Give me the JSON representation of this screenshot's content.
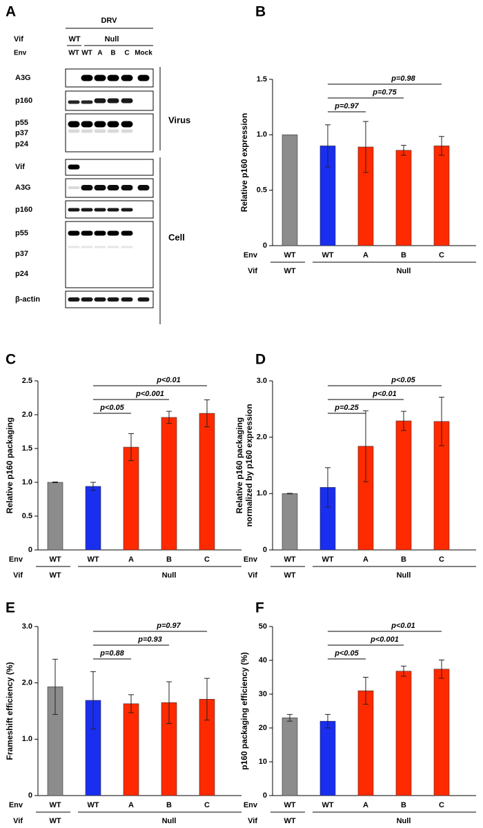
{
  "blot": {
    "panel": "A",
    "title": "DRV",
    "vif_label": "Vif",
    "vif_groups": [
      "WT",
      "Null"
    ],
    "env_label": "Env",
    "lanes": [
      "WT",
      "WT",
      "A",
      "B",
      "C",
      "Mock"
    ],
    "virus_label": "Virus",
    "cell_label": "Cell",
    "virus_blots": [
      [
        "A3G"
      ],
      [
        "p160"
      ],
      [
        "p55",
        "p37",
        "p24"
      ]
    ],
    "cell_blots": [
      [
        "Vif"
      ],
      [
        "A3G"
      ],
      [
        "p160"
      ],
      [
        "p55",
        "p37",
        "p24"
      ],
      [
        "β-actin"
      ]
    ]
  },
  "chart_data": [
    {
      "type": "bar",
      "panel": "B",
      "ylabel": "Relative p160 expression",
      "categories": [
        "WT",
        "WT",
        "A",
        "B",
        "C"
      ],
      "values": [
        1.0,
        0.9,
        0.89,
        0.86,
        0.9
      ],
      "errors": [
        0,
        0.19,
        0.23,
        0.045,
        0.085
      ],
      "colors": [
        "#8c8c8c",
        "#1a2ef0",
        "#ff2a00",
        "#ff2a00",
        "#ff2a00"
      ],
      "ylim": [
        0,
        1.5
      ],
      "yticks": [
        0,
        0.5,
        {
          "value": 1,
          "label": "1.0"
        },
        1.5
      ],
      "comparisons": [
        "p=0.97",
        "p=0.75",
        "p=0.98"
      ],
      "row_labels": [
        "Env",
        "Vif"
      ],
      "groups": [
        "WT",
        "Null"
      ]
    },
    {
      "type": "bar",
      "panel": "C",
      "ylabel": "Relative p160 packaging",
      "categories": [
        "WT",
        "WT",
        "A",
        "B",
        "C"
      ],
      "values": [
        1.0,
        0.94,
        1.52,
        1.96,
        2.02
      ],
      "errors": [
        0.005,
        0.06,
        0.2,
        0.09,
        0.2
      ],
      "colors": [
        "#8c8c8c",
        "#1a2ef0",
        "#ff2a00",
        "#ff2a00",
        "#ff2a00"
      ],
      "ylim": [
        0,
        2.5
      ],
      "yticks": [
        0,
        0.5,
        {
          "value": 1,
          "label": "1.0"
        },
        1.5,
        {
          "value": 2,
          "label": "2.0"
        },
        2.5
      ],
      "comparisons": [
        "p<0.05",
        "p<0.001",
        "p<0.01"
      ],
      "row_labels": [
        "Env",
        "Vif"
      ],
      "groups": [
        "WT",
        "Null"
      ]
    },
    {
      "type": "bar",
      "panel": "D",
      "ylabel": [
        "Relative p160 packaging",
        "normalized by p160 expression"
      ],
      "categories": [
        "WT",
        "WT",
        "A",
        "B",
        "C"
      ],
      "values": [
        1.0,
        1.11,
        1.84,
        2.29,
        2.28
      ],
      "errors": [
        0.005,
        0.35,
        0.63,
        0.17,
        0.43
      ],
      "colors": [
        "#8c8c8c",
        "#1a2ef0",
        "#ff2a00",
        "#ff2a00",
        "#ff2a00"
      ],
      "ylim": [
        0,
        3
      ],
      "yticks": [
        0,
        {
          "value": 1,
          "label": "1.0"
        },
        {
          "value": 2,
          "label": "2.0"
        },
        {
          "value": 3,
          "label": "3.0"
        }
      ],
      "comparisons": [
        "p=0.25",
        "p<0.01",
        "p<0.05"
      ],
      "row_labels": [
        "Env",
        "Vif"
      ],
      "groups": [
        "WT",
        "Null"
      ]
    },
    {
      "type": "bar",
      "panel": "E",
      "ylabel": "Frameshift efficiency (%)",
      "categories": [
        "WT",
        "WT",
        "A",
        "B",
        "C"
      ],
      "values": [
        1.93,
        1.69,
        1.63,
        1.65,
        1.71
      ],
      "errors": [
        0.49,
        0.51,
        0.16,
        0.37,
        0.37
      ],
      "colors": [
        "#8c8c8c",
        "#1a2ef0",
        "#ff2a00",
        "#ff2a00",
        "#ff2a00"
      ],
      "ylim": [
        0,
        3
      ],
      "yticks": [
        0,
        {
          "value": 1,
          "label": "1.0"
        },
        {
          "value": 2,
          "label": "2.0"
        },
        {
          "value": 3,
          "label": "3.0"
        }
      ],
      "comparisons": [
        "p=0.88",
        "p=0.93",
        "p=0.97"
      ],
      "row_labels": [
        "Env",
        "Vif"
      ],
      "groups": [
        "WT",
        "Null"
      ]
    },
    {
      "type": "bar",
      "panel": "F",
      "ylabel": "p160 packaging efficiency (%)",
      "categories": [
        "WT",
        "WT",
        "A",
        "B",
        "C"
      ],
      "values": [
        23,
        22,
        31,
        36.8,
        37.4
      ],
      "errors": [
        1,
        2,
        4,
        1.5,
        2.7
      ],
      "colors": [
        "#8c8c8c",
        "#1a2ef0",
        "#ff2a00",
        "#ff2a00",
        "#ff2a00"
      ],
      "ylim": [
        0,
        50
      ],
      "yticks": [
        0,
        10,
        20,
        30,
        40,
        50
      ],
      "comparisons": [
        "p<0.05",
        "p<0.001",
        "p<0.01"
      ],
      "row_labels": [
        "Env",
        "Vif"
      ],
      "groups": [
        "WT",
        "Null"
      ]
    }
  ]
}
